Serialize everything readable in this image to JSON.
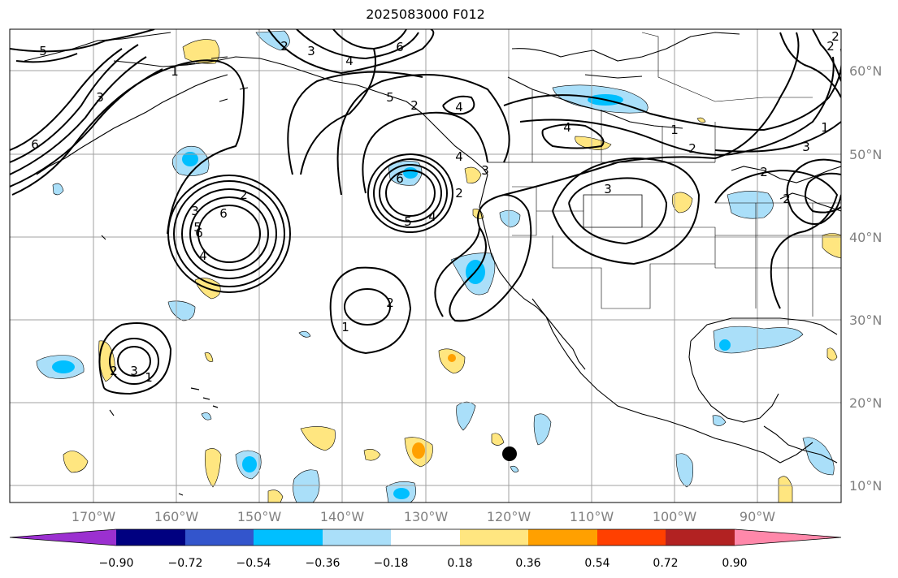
{
  "title": "2025083000 F012",
  "map": {
    "lon_ticks": [
      "170°W",
      "160°W",
      "150°W",
      "140°W",
      "130°W",
      "120°W",
      "110°W",
      "100°W",
      "90°W"
    ],
    "lat_ticks": [
      "60°N",
      "50°N",
      "40°N",
      "30°N",
      "20°N",
      "10°N"
    ],
    "contour_labels": [
      "5",
      "6",
      "2",
      "3",
      "4",
      "1",
      "3",
      "2",
      "6",
      "3",
      "6",
      "4",
      "5",
      "2",
      "4",
      "1",
      "2",
      "3",
      "3",
      "4",
      "3",
      "2",
      "2",
      "6",
      "5",
      "4",
      "6",
      "5",
      "2",
      "4",
      "1",
      "2",
      "1",
      "3",
      "2",
      "1",
      "2",
      "2"
    ],
    "marker": "station-dot"
  },
  "colorbar": {
    "ticks": [
      "−0.90",
      "−0.72",
      "−0.54",
      "−0.36",
      "−0.18",
      "0.18",
      "0.36",
      "0.54",
      "0.72",
      "0.90"
    ],
    "colors": [
      "#9b30d0",
      "#000080",
      "#3355cc",
      "#00bfff",
      "#aadff9",
      "#ffffff",
      "#ffe680",
      "#ffa000",
      "#ff4000",
      "#b22222",
      "#ff88aa"
    ]
  }
}
